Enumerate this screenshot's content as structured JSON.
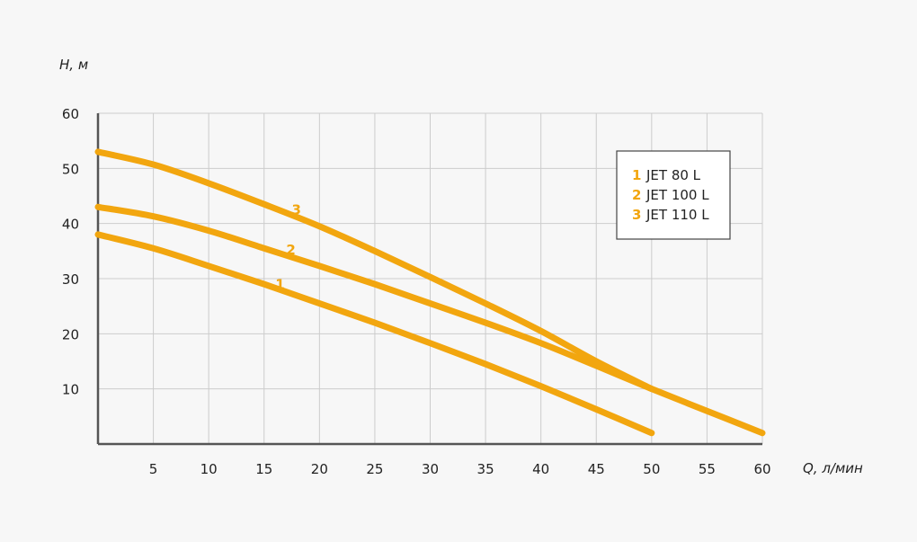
{
  "chart_data": {
    "type": "line",
    "xlabel": "Q, л/мин",
    "ylabel": "H, м",
    "xlim": [
      0,
      60
    ],
    "ylim": [
      0,
      60
    ],
    "x_ticks": [
      5,
      10,
      15,
      20,
      25,
      30,
      35,
      40,
      45,
      50,
      55,
      60
    ],
    "y_ticks": [
      10,
      20,
      30,
      40,
      50,
      60
    ],
    "grid": true,
    "legend_position": "top-right",
    "color": "#f2a60f",
    "series": [
      {
        "name": "JET 80 L",
        "label": "1",
        "x": [
          0,
          5,
          10,
          15,
          20,
          25,
          30,
          35,
          40,
          45,
          50
        ],
        "y": [
          38,
          35.5,
          32.3,
          29,
          25.5,
          22,
          18.3,
          14.5,
          10.5,
          6.3,
          2
        ]
      },
      {
        "name": "JET 100 L",
        "label": "2",
        "x": [
          0,
          5,
          10,
          15,
          20,
          25,
          30,
          35,
          40,
          45,
          50,
          55,
          60
        ],
        "y": [
          43,
          41.3,
          38.7,
          35.5,
          32.3,
          29,
          25.5,
          22,
          18.3,
          14.2,
          10,
          6,
          2
        ]
      },
      {
        "name": "JET 110 L",
        "label": "3",
        "x": [
          0,
          5,
          10,
          15,
          20,
          25,
          30,
          35,
          40,
          45,
          50
        ],
        "y": [
          53,
          50.7,
          47.3,
          43.5,
          39.5,
          35,
          30.3,
          25.5,
          20.5,
          15,
          10
        ]
      }
    ]
  }
}
